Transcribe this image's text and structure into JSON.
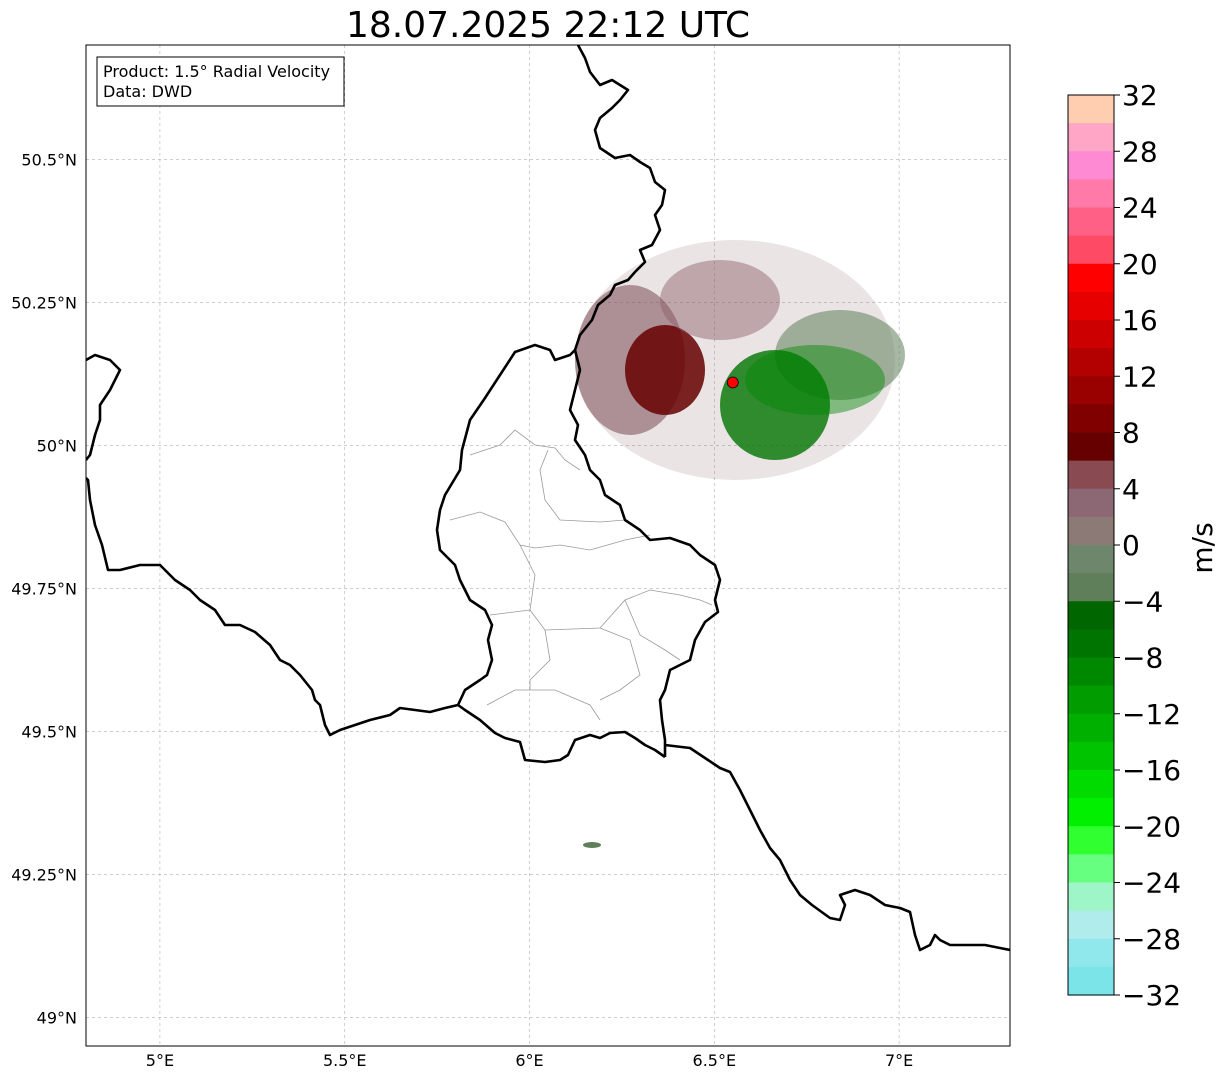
{
  "title": "18.07.2025 22:12 UTC",
  "info_box": {
    "product": "Product: 1.5° Radial Velocity",
    "source": "Data: DWD"
  },
  "axes": {
    "lon_range": [
      4.8,
      7.3
    ],
    "lat_range": [
      48.95,
      50.7
    ],
    "lon_ticks": [
      {
        "value": 5.0,
        "label": "5°E"
      },
      {
        "value": 5.5,
        "label": "5.5°E"
      },
      {
        "value": 6.0,
        "label": "6°E"
      },
      {
        "value": 6.5,
        "label": "6.5°E"
      },
      {
        "value": 7.0,
        "label": "7°E"
      }
    ],
    "lat_ticks": [
      {
        "value": 50.5,
        "label": "50.5°N"
      },
      {
        "value": 50.25,
        "label": "50.25°N"
      },
      {
        "value": 50.0,
        "label": "50°N"
      },
      {
        "value": 49.75,
        "label": "49.75°N"
      },
      {
        "value": 49.5,
        "label": "49.5°N"
      },
      {
        "value": 49.25,
        "label": "49.25°N"
      },
      {
        "value": 49.0,
        "label": "49°N"
      }
    ],
    "grid": true
  },
  "radar_site": {
    "lon": 6.55,
    "lat": 50.11,
    "color": "#ff0000"
  },
  "colorbar": {
    "unit": "m/s",
    "range": [
      -32,
      32
    ],
    "ticks": [
      "32",
      "28",
      "24",
      "20",
      "16",
      "12",
      "8",
      "4",
      "0",
      "−4",
      "−8",
      "−12",
      "−16",
      "−20",
      "−24",
      "−28",
      "−32"
    ],
    "colors": [
      "#ffcdb0",
      "#ffa6c6",
      "#ff8ad4",
      "#ff7aa8",
      "#ff6086",
      "#ff4a66",
      "#ff0000",
      "#e60000",
      "#cc0000",
      "#b30000",
      "#990000",
      "#800000",
      "#660000",
      "#8a4a52",
      "#8c6875",
      "#8c7a76",
      "#6e876c",
      "#5e7f5a",
      "#006600",
      "#007400",
      "#008800",
      "#009c00",
      "#00b000",
      "#00c400",
      "#00dc00",
      "#00f000",
      "#30ff30",
      "#66ff80",
      "#9ef5c8",
      "#b0ecec",
      "#90e8ec",
      "#7ae4e8"
    ]
  }
}
